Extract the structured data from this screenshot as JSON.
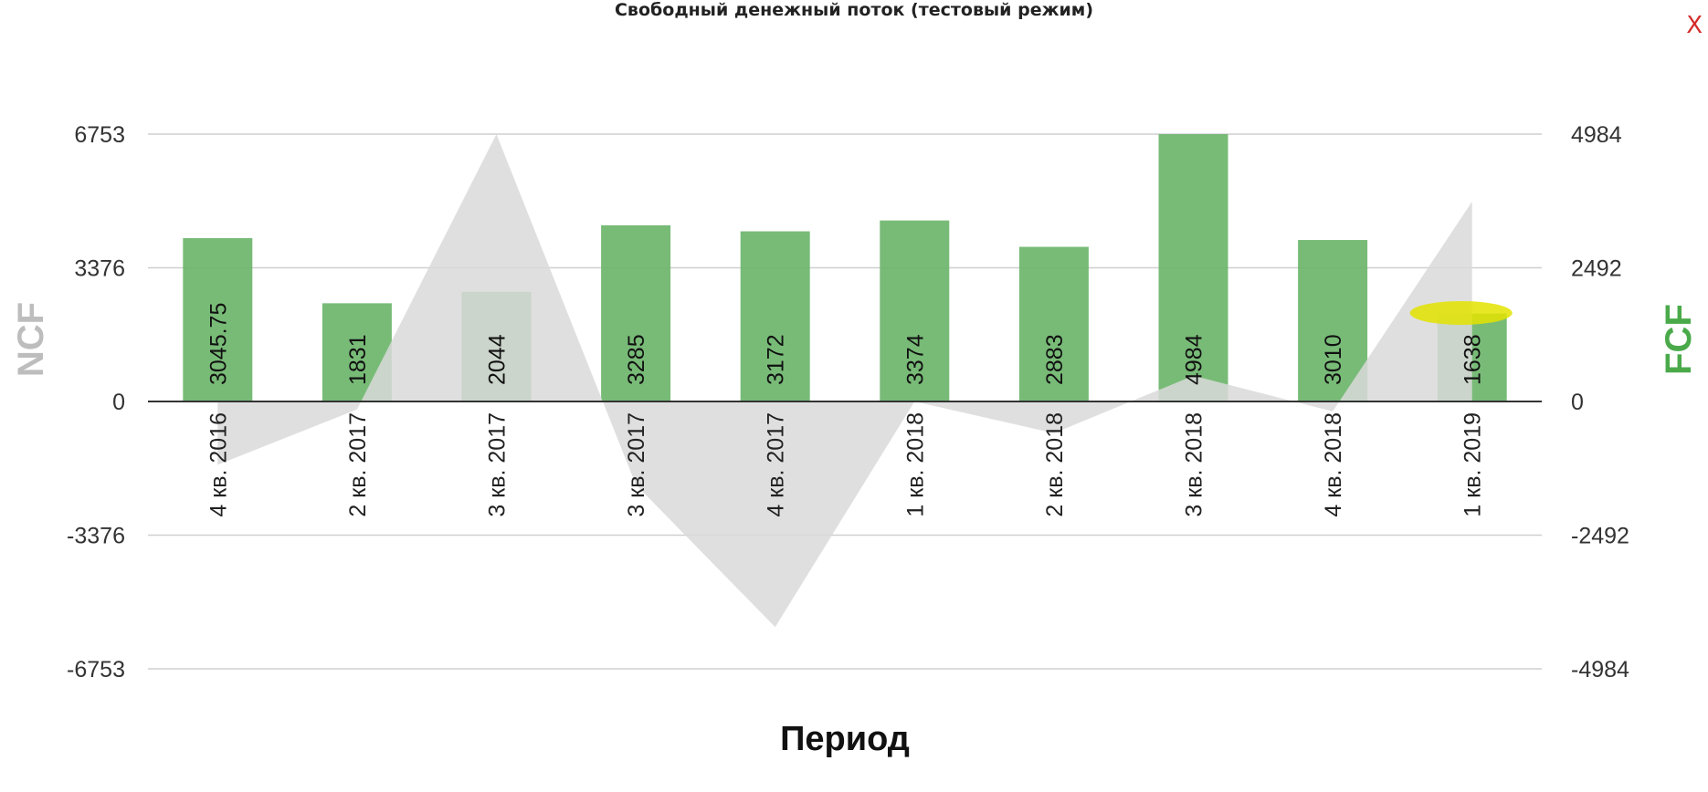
{
  "title": "Свободный денежный поток (тестовый режим)",
  "close_label": "X",
  "chart_data": {
    "type": "bar",
    "categories": [
      "4 кв. 2016",
      "2 кв. 2017",
      "3 кв. 2017",
      "3 кв. 2017",
      "4 кв. 2017",
      "1 кв. 2018",
      "2 кв. 2018",
      "3 кв. 2018",
      "4 кв. 2018",
      "1 кв. 2019"
    ],
    "series": [
      {
        "name": "FCF",
        "type": "bar",
        "axis": "right",
        "color": "#6db56b",
        "values": [
          3045.75,
          1831,
          2044,
          3285,
          3172,
          3374,
          2883,
          4984,
          3010,
          1638
        ]
      },
      {
        "name": "NCF",
        "type": "area",
        "axis": "left",
        "color": "#d9d9d9",
        "values": [
          -1600,
          -200,
          6753,
          -2100,
          -5700,
          0,
          -800,
          650,
          -250,
          5050
        ]
      }
    ],
    "xlabel": "Период",
    "ylabel_left": "NCF",
    "ylabel_right": "FCF",
    "left_axis": {
      "ticks": [
        "6753",
        "3376",
        "0",
        "-3376",
        "-6753"
      ],
      "range": [
        -6753,
        6753
      ]
    },
    "right_axis": {
      "ticks": [
        "4984",
        "2492",
        "0",
        "-2492",
        "-4984"
      ],
      "range": [
        -4984,
        4984
      ]
    },
    "grid": true,
    "legend": "none",
    "highlight": {
      "category_index": 9,
      "color": "#e3e300"
    }
  }
}
